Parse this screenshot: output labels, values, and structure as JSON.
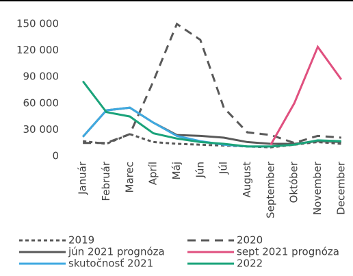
{
  "chart_data": {
    "type": "line",
    "categories": [
      "Január",
      "Február",
      "Marec",
      "Apríl",
      "Máj",
      "Jún",
      "Júl",
      "August",
      "September",
      "Október",
      "November",
      "December"
    ],
    "series": [
      {
        "name": "2019",
        "color": "#595959",
        "dash": "short",
        "values": [
          17000,
          14000,
          25000,
          16000,
          14000,
          13000,
          12000,
          11000,
          10000,
          13000,
          16000,
          14000
        ]
      },
      {
        "name": "2020",
        "color": "#595959",
        "dash": "long",
        "values": [
          15000,
          15000,
          25000,
          85000,
          150000,
          132000,
          55000,
          27000,
          24000,
          15000,
          23000,
          21000
        ]
      },
      {
        "name": "jún 2021 prognóza",
        "color": "#595959",
        "dash": "solid",
        "values": [
          22000,
          52000,
          55000,
          38000,
          24000,
          23000,
          21000,
          16000,
          14000,
          14000,
          17000,
          16000
        ]
      },
      {
        "name": "sept 2021 prognóza",
        "color": "#e0507f",
        "dash": "solid",
        "values": [
          null,
          null,
          null,
          null,
          null,
          null,
          null,
          null,
          13000,
          60000,
          124000,
          87000
        ]
      },
      {
        "name": "skutočnosť 2021",
        "color": "#3fa9e0",
        "dash": "solid",
        "values": [
          22000,
          52000,
          55000,
          38000,
          23000,
          17000,
          13000,
          11000,
          11000,
          null,
          null,
          null
        ]
      },
      {
        "name": "2022",
        "color": "#1aa37a",
        "dash": "solid",
        "values": [
          85000,
          50000,
          45000,
          26000,
          20000,
          16000,
          14000,
          11000,
          11000,
          13000,
          18000,
          17000
        ]
      }
    ],
    "ylim": [
      0,
      150000
    ],
    "yticks": [
      0,
      {
        "value": 30000,
        "label": "30 000"
      },
      {
        "value": 60000,
        "label": "60 000"
      },
      {
        "value": 90000,
        "label": "90 000"
      },
      {
        "value": 120000,
        "label": "120 000"
      },
      {
        "value": 150000,
        "label": "150 000"
      }
    ],
    "grid": false,
    "legend": "bottom"
  }
}
